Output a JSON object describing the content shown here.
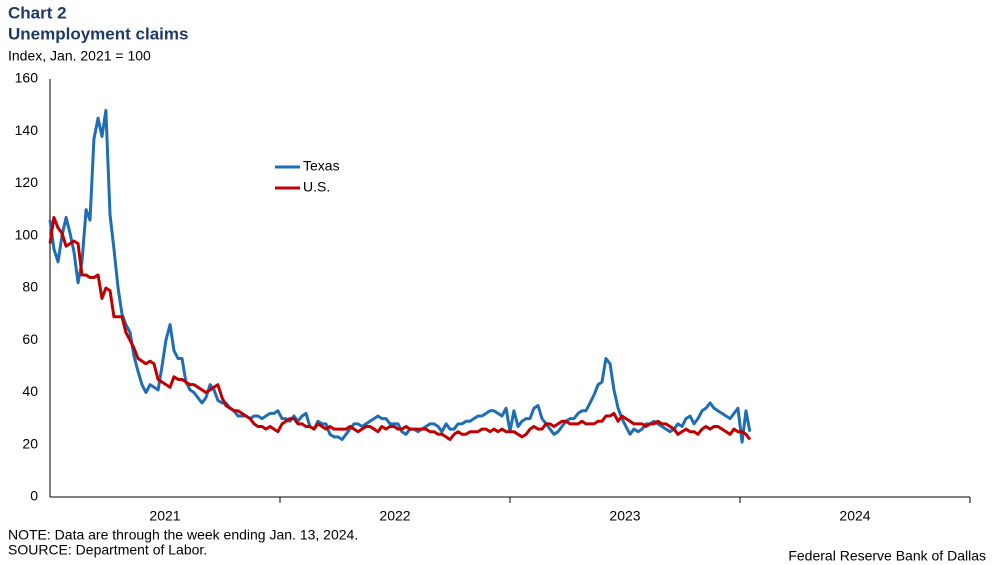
{
  "chart_data": {
    "type": "line",
    "title": "Chart 2",
    "subtitle": "Unemployment claims",
    "y_label": "Index,  Jan. 2021 = 100",
    "note": "NOTE: Data are through the week ending Jan. 13, 2024.",
    "source": "SOURCE: Department of Labor.",
    "credit": "Federal Reserve Bank of Dallas",
    "xlim": [
      2021,
      2025
    ],
    "xticks": [
      {
        "value": 2021.5,
        "label": "2021"
      },
      {
        "value": 2022.5,
        "label": "2022"
      },
      {
        "value": 2023.5,
        "label": "2023"
      },
      {
        "value": 2024.5,
        "label": "2024"
      }
    ],
    "ylim": [
      0,
      160
    ],
    "yticks": [
      0,
      20,
      40,
      60,
      80,
      100,
      120,
      140,
      160
    ],
    "grid": false,
    "legend": "upper-center",
    "x": [
      2021.0,
      2021.017,
      2021.035,
      2021.052,
      2021.07,
      2021.087,
      2021.104,
      2021.122,
      2021.139,
      2021.157,
      2021.174,
      2021.191,
      2021.209,
      2021.226,
      2021.243,
      2021.261,
      2021.278,
      2021.296,
      2021.313,
      2021.33,
      2021.348,
      2021.365,
      2021.383,
      2021.4,
      2021.417,
      2021.435,
      2021.452,
      2021.47,
      2021.487,
      2021.504,
      2021.522,
      2021.539,
      2021.557,
      2021.574,
      2021.591,
      2021.609,
      2021.626,
      2021.643,
      2021.661,
      2021.678,
      2021.696,
      2021.713,
      2021.73,
      2021.748,
      2021.765,
      2021.783,
      2021.8,
      2021.817,
      2021.835,
      2021.852,
      2021.87,
      2021.887,
      2021.904,
      2021.922,
      2021.939,
      2021.957,
      2021.974,
      2021.991,
      2022.009,
      2022.026,
      2022.043,
      2022.061,
      2022.078,
      2022.096,
      2022.113,
      2022.13,
      2022.148,
      2022.165,
      2022.183,
      2022.2,
      2022.217,
      2022.235,
      2022.252,
      2022.27,
      2022.287,
      2022.304,
      2022.322,
      2022.339,
      2022.357,
      2022.374,
      2022.391,
      2022.409,
      2022.426,
      2022.443,
      2022.461,
      2022.478,
      2022.496,
      2022.513,
      2022.53,
      2022.548,
      2022.565,
      2022.583,
      2022.6,
      2022.617,
      2022.635,
      2022.652,
      2022.67,
      2022.687,
      2022.704,
      2022.722,
      2022.739,
      2022.757,
      2022.774,
      2022.791,
      2022.809,
      2022.826,
      2022.843,
      2022.861,
      2022.878,
      2022.896,
      2022.913,
      2022.93,
      2022.948,
      2022.965,
      2022.983,
      2023.0,
      2023.017,
      2023.035,
      2023.052,
      2023.07,
      2023.087,
      2023.104,
      2023.122,
      2023.139,
      2023.157,
      2023.174,
      2023.191,
      2023.209,
      2023.226,
      2023.243,
      2023.261,
      2023.278,
      2023.296,
      2023.313,
      2023.33,
      2023.348,
      2023.365,
      2023.383,
      2023.4,
      2023.417,
      2023.435,
      2023.452,
      2023.47,
      2023.487,
      2023.504,
      2023.522,
      2023.539,
      2023.557,
      2023.574,
      2023.591,
      2023.609,
      2023.626,
      2023.643,
      2023.661,
      2023.678,
      2023.696,
      2023.713,
      2023.73,
      2023.748,
      2023.765,
      2023.783,
      2023.8,
      2023.817,
      2023.835,
      2023.852,
      2023.87,
      2023.887,
      2023.904,
      2023.922,
      2023.939,
      2023.957,
      2023.974,
      2023.991,
      2024.009,
      2024.026,
      2024.043
    ],
    "series": [
      {
        "name": "Texas",
        "color": "#1f6eb3",
        "values": [
          106,
          95,
          90,
          100,
          107,
          101,
          94,
          82,
          90,
          110,
          106,
          137,
          145,
          138,
          148,
          108,
          95,
          80,
          70,
          66,
          63,
          54,
          48,
          43,
          40,
          43,
          42,
          41,
          50,
          60,
          66,
          56,
          53,
          53,
          44,
          41,
          40,
          38,
          36,
          38,
          43,
          41,
          37,
          36,
          36,
          34,
          33,
          31,
          31,
          31,
          30,
          31,
          31,
          30,
          31,
          32,
          32,
          33,
          30,
          30,
          29,
          31,
          29,
          31,
          32,
          27,
          26,
          29,
          28,
          28,
          24,
          23,
          23,
          22,
          24,
          26,
          28,
          28,
          27,
          28,
          29,
          30,
          31,
          30,
          30,
          28,
          28,
          28,
          25,
          24,
          26,
          26,
          25,
          26,
          27,
          28,
          28,
          27,
          25,
          28,
          26,
          26,
          28,
          28,
          29,
          29,
          30,
          31,
          31,
          32,
          33,
          33,
          32,
          31,
          34,
          25,
          33,
          27,
          29,
          30,
          30,
          34,
          35,
          30,
          28,
          26,
          24,
          25,
          27,
          29,
          30,
          30,
          32,
          33,
          33,
          36,
          39,
          43,
          44,
          53,
          51,
          41,
          34,
          30,
          27,
          24,
          26,
          25,
          26,
          28,
          28,
          29,
          28,
          27,
          26,
          25,
          26,
          28,
          27,
          30,
          31,
          28,
          30,
          33,
          34,
          36,
          34,
          33,
          32,
          31,
          30,
          32,
          34,
          21,
          33,
          25
        ]
      },
      {
        "name": "U.S.",
        "color": "#c00000",
        "values": [
          97,
          107,
          103,
          101,
          96,
          97,
          98,
          97,
          85,
          85,
          84,
          84,
          85,
          76,
          80,
          79,
          69,
          69,
          69,
          63,
          60,
          57,
          53,
          52,
          51,
          52,
          51,
          45,
          44,
          43,
          42,
          46,
          45,
          45,
          44,
          43,
          43,
          42,
          41,
          40,
          41,
          42,
          43,
          38,
          35,
          34,
          33,
          33,
          32,
          31,
          30,
          28,
          27,
          27,
          26,
          27,
          26,
          25,
          28,
          29,
          30,
          30,
          28,
          28,
          27,
          27,
          26,
          28,
          27,
          26,
          27,
          26,
          26,
          26,
          26,
          27,
          26,
          25,
          26,
          27,
          27,
          26,
          25,
          27,
          26,
          27,
          27,
          26,
          26,
          27,
          26,
          26,
          26,
          26,
          26,
          25,
          25,
          24,
          24,
          23,
          22,
          24,
          25,
          24,
          24,
          25,
          25,
          25,
          26,
          26,
          25,
          26,
          25,
          26,
          25,
          25,
          25,
          24,
          23,
          24,
          26,
          27,
          26,
          26,
          28,
          28,
          27,
          28,
          29,
          29,
          28,
          28,
          28,
          29,
          28,
          28,
          28,
          29,
          29,
          31,
          31,
          32,
          29,
          31,
          30,
          29,
          28,
          28,
          28,
          27,
          28,
          28,
          29,
          28,
          28,
          27,
          26,
          24,
          25,
          26,
          25,
          25,
          24,
          26,
          27,
          26,
          27,
          27,
          26,
          25,
          24,
          26,
          25,
          25,
          24,
          22
        ]
      }
    ]
  }
}
